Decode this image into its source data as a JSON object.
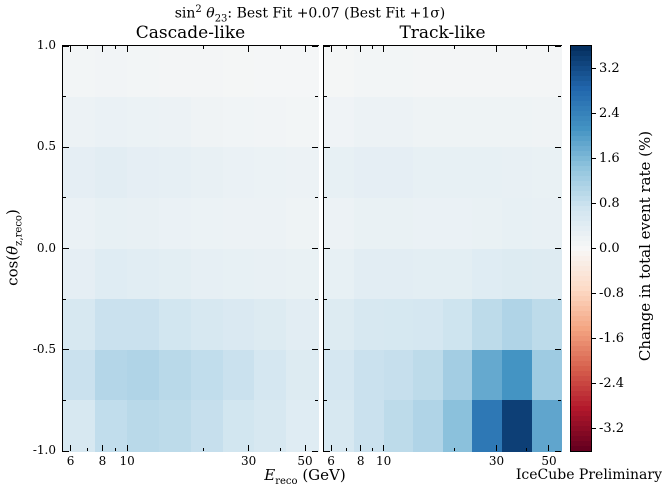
{
  "chart_data": {
    "type": "heatmap",
    "title": {
      "sin": "sin",
      "exp": "2",
      "theta": "θ",
      "theta_sub": "23",
      "rest": ": Best Fit +0.07 (Best Fit +1σ)"
    },
    "panels": [
      {
        "label": "Cascade-like",
        "values": [
          [
            0.1,
            0.12,
            0.1,
            0.08,
            0.08,
            0.06,
            0.05,
            0.05
          ],
          [
            0.2,
            0.25,
            0.22,
            0.2,
            0.16,
            0.14,
            0.12,
            0.1
          ],
          [
            0.35,
            0.4,
            0.35,
            0.32,
            0.28,
            0.25,
            0.22,
            0.2
          ],
          [
            0.25,
            0.3,
            0.28,
            0.25,
            0.22,
            0.2,
            0.2,
            0.18
          ],
          [
            0.35,
            0.45,
            0.42,
            0.38,
            0.32,
            0.3,
            0.28,
            0.26
          ],
          [
            0.6,
            0.8,
            0.8,
            0.7,
            0.6,
            0.55,
            0.5,
            0.4
          ],
          [
            0.8,
            1.05,
            1.1,
            1.0,
            0.9,
            0.8,
            0.65,
            0.5
          ],
          [
            0.6,
            0.9,
            1.0,
            0.95,
            0.85,
            0.7,
            0.6,
            0.45
          ]
        ]
      },
      {
        "label": "Track-like",
        "values": [
          [
            0.06,
            0.1,
            0.1,
            0.08,
            0.08,
            0.08,
            0.08,
            0.08
          ],
          [
            0.15,
            0.2,
            0.2,
            0.18,
            0.18,
            0.18,
            0.18,
            0.16
          ],
          [
            0.3,
            0.35,
            0.35,
            0.3,
            0.3,
            0.3,
            0.28,
            0.26
          ],
          [
            0.2,
            0.26,
            0.26,
            0.24,
            0.24,
            0.26,
            0.3,
            0.28
          ],
          [
            0.3,
            0.4,
            0.4,
            0.38,
            0.38,
            0.45,
            0.5,
            0.48
          ],
          [
            0.5,
            0.6,
            0.62,
            0.65,
            0.75,
            0.95,
            1.1,
            0.95
          ],
          [
            0.65,
            0.8,
            0.85,
            0.95,
            1.25,
            1.85,
            2.15,
            1.3
          ],
          [
            0.6,
            0.8,
            0.95,
            1.1,
            1.5,
            2.6,
            3.4,
            1.9
          ]
        ]
      }
    ],
    "x_edges_gev": [
      5.6,
      7.5,
      10.0,
      13.3,
      17.8,
      23.7,
      31.6,
      42.2,
      56.2
    ],
    "y_edges_cos": [
      1.0,
      0.75,
      0.5,
      0.25,
      0.0,
      -0.25,
      -0.5,
      -0.75,
      -1.0
    ],
    "xlim": [
      5.6,
      56.2
    ],
    "ylim": [
      -1.0,
      1.0
    ],
    "x_ticks": [
      {
        "value": 6,
        "label": "6"
      },
      {
        "value": 8,
        "label": "8"
      },
      {
        "value": 10,
        "label": "10"
      },
      {
        "value": 30,
        "label": "30"
      },
      {
        "value": 50,
        "label": "50"
      }
    ],
    "x_minor_ticks": [
      7,
      9,
      20,
      40
    ],
    "y_ticks": [
      {
        "value": 1.0,
        "label": "1.0"
      },
      {
        "value": 0.5,
        "label": "0.5"
      },
      {
        "value": 0.0,
        "label": "0.0"
      },
      {
        "value": -0.5,
        "label": "-0.5"
      },
      {
        "value": -1.0,
        "label": "-1.0"
      }
    ],
    "y_minor_ticks": [
      0.75,
      0.25,
      -0.25,
      -0.75
    ],
    "xlabel": {
      "var": "E",
      "sub": "reco",
      "rest": " (GeV)"
    },
    "ylabel": {
      "func": "cos(",
      "var": "θ",
      "sub": "z,reco",
      "close": ")"
    },
    "colorbar": {
      "label": "Change in total event rate (%)",
      "vmin": -3.6,
      "vmax": 3.6,
      "ticks": [
        {
          "value": 3.2,
          "label": "3.2"
        },
        {
          "value": 2.4,
          "label": "2.4"
        },
        {
          "value": 1.6,
          "label": "1.6"
        },
        {
          "value": 0.8,
          "label": "0.8"
        },
        {
          "value": 0.0,
          "label": "0.0"
        },
        {
          "value": -0.8,
          "label": "-0.8"
        },
        {
          "value": -1.6,
          "label": "-1.6"
        },
        {
          "value": -2.4,
          "label": "-2.4"
        },
        {
          "value": -3.2,
          "label": "-3.2"
        }
      ]
    },
    "colormap": {
      "name": "RdBu",
      "anchors": [
        "#67001f",
        "#b2182b",
        "#d6604d",
        "#f4a582",
        "#fddbc7",
        "#f7f7f7",
        "#d1e5f0",
        "#92c5de",
        "#4393c3",
        "#2166ac",
        "#053061"
      ]
    },
    "watermark": "IceCube Preliminary"
  }
}
